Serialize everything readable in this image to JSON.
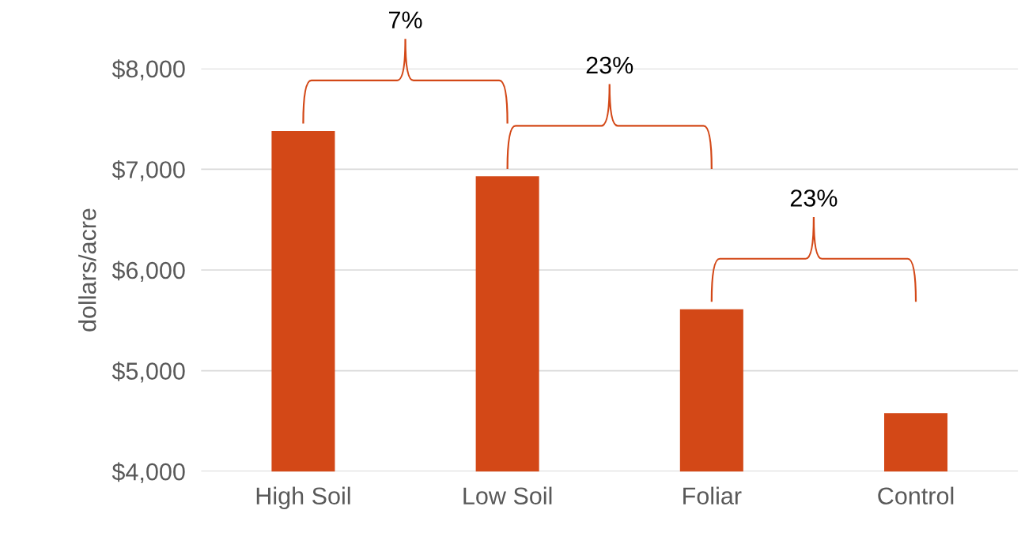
{
  "chart_data": {
    "type": "bar",
    "ylabel": "dollars/acre",
    "categories": [
      "High Soil",
      "Low Soil",
      "Foliar",
      "Control"
    ],
    "values": [
      7380,
      6930,
      5610,
      4580
    ],
    "color": "#d34817",
    "ylim": [
      4000,
      8000
    ],
    "yticks": [
      {
        "value": 4000,
        "label": "$4,000"
      },
      {
        "value": 5000,
        "label": "$5,000"
      },
      {
        "value": 6000,
        "label": "$6,000"
      },
      {
        "value": 7000,
        "label": "$7,000"
      },
      {
        "value": 8000,
        "label": "$8,000"
      }
    ],
    "grid": "y",
    "annotations": [
      "7%",
      "23%",
      "23%"
    ]
  }
}
